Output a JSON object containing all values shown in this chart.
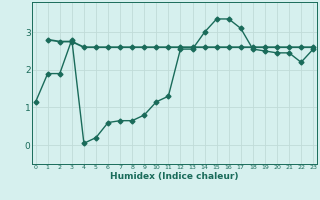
{
  "line1_x": [
    0,
    1,
    2,
    3,
    4,
    5,
    6,
    7,
    8,
    9,
    10,
    11,
    12,
    13,
    14,
    15,
    16,
    17,
    18,
    19,
    20,
    21,
    22,
    23
  ],
  "line1_y": [
    1.15,
    1.9,
    1.9,
    2.8,
    0.05,
    0.2,
    0.6,
    0.65,
    0.65,
    0.8,
    1.15,
    1.3,
    2.55,
    2.55,
    3.0,
    3.35,
    3.35,
    3.1,
    2.55,
    2.5,
    2.45,
    2.45,
    2.2,
    2.55
  ],
  "line2_x": [
    1,
    2,
    3,
    4,
    5,
    6,
    7,
    8,
    9,
    10,
    11,
    12,
    13,
    14,
    15,
    16,
    17,
    18,
    19,
    20,
    21,
    22,
    23
  ],
  "line2_y": [
    2.8,
    2.75,
    2.75,
    2.6,
    2.6,
    2.6,
    2.6,
    2.6,
    2.6,
    2.6,
    2.6,
    2.6,
    2.6,
    2.6,
    2.6,
    2.6,
    2.6,
    2.6,
    2.6,
    2.6,
    2.6,
    2.6,
    2.6
  ],
  "line_color": "#1a6b5a",
  "bg_color": "#d6f0ee",
  "grid_color": "#c0dbd8",
  "axis_color": "#1a6b5a",
  "xlabel": "Humidex (Indice chaleur)",
  "xtick_labels": [
    "0",
    "1",
    "2",
    "3",
    "4",
    "5",
    "6",
    "7",
    "8",
    "9",
    "10",
    "11",
    "12",
    "13",
    "14",
    "15",
    "16",
    "17",
    "18",
    "19",
    "20",
    "21",
    "22",
    "23"
  ],
  "xticks": [
    0,
    1,
    2,
    3,
    4,
    5,
    6,
    7,
    8,
    9,
    10,
    11,
    12,
    13,
    14,
    15,
    16,
    17,
    18,
    19,
    20,
    21,
    22,
    23
  ],
  "yticks": [
    0,
    1,
    2,
    3
  ],
  "xlim": [
    -0.3,
    23.3
  ],
  "ylim": [
    -0.5,
    3.8
  ],
  "marker": "D",
  "markersize": 2.5,
  "linewidth1": 1.0,
  "linewidth2": 1.3
}
